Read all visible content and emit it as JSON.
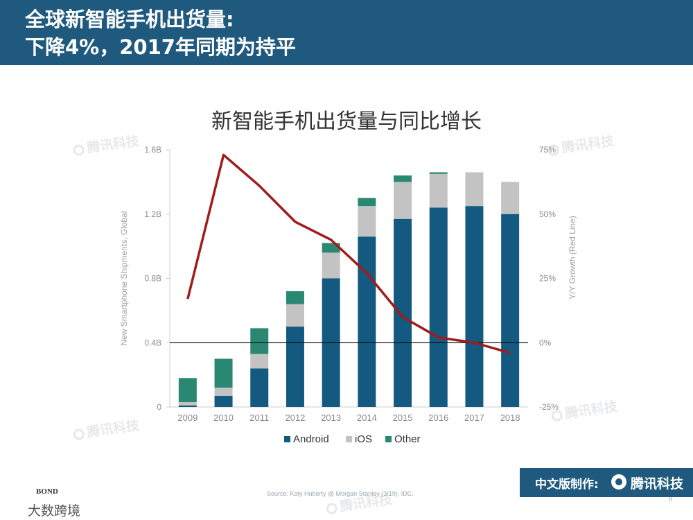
{
  "header": {
    "title_line1": "全球新智能手机出货量:",
    "title_line2": "下降4%，2017年同期为持平",
    "background": "#1f5a7e"
  },
  "chart_data": {
    "type": "bar",
    "stacked": true,
    "title": "新智能手机出货量与同比增长",
    "categories": [
      "2009",
      "2010",
      "2011",
      "2012",
      "2013",
      "2014",
      "2015",
      "2016",
      "2017",
      "2018"
    ],
    "ylabel": "New Smartphone Shipments, Global",
    "y2label": "Y/Y Growth (Red Line)",
    "ylim": [
      0,
      1.6
    ],
    "yticks": [
      "0",
      "0.4B",
      "0.8B",
      "1.2B",
      "1.6B"
    ],
    "y2lim": [
      -25,
      75
    ],
    "y2ticks": [
      "-25%",
      "0%",
      "25%",
      "50%",
      "75%"
    ],
    "series": [
      {
        "name": "Android",
        "color": "#14597f",
        "values": [
          0.01,
          0.07,
          0.24,
          0.5,
          0.8,
          1.06,
          1.17,
          1.24,
          1.25,
          1.2
        ]
      },
      {
        "name": "iOS",
        "color": "#c3c3c3",
        "values": [
          0.02,
          0.05,
          0.09,
          0.14,
          0.16,
          0.19,
          0.23,
          0.21,
          0.21,
          0.2
        ]
      },
      {
        "name": "Other",
        "color": "#2a8872",
        "values": [
          0.15,
          0.18,
          0.16,
          0.08,
          0.06,
          0.05,
          0.04,
          0.01,
          0.0,
          0.0
        ]
      }
    ],
    "line": {
      "name": "Y/Y Growth",
      "color": "#a01c1c",
      "values": [
        17,
        73,
        61,
        47,
        40,
        27,
        10,
        2,
        0,
        -4
      ]
    },
    "legend": [
      "Android",
      "iOS",
      "Other"
    ],
    "legend_position": "bottom",
    "grid": false,
    "zero_line": true
  },
  "source": "Source: Katy Huberty @ Morgan Stanley (3/19), IDC.",
  "page_number": "8",
  "footer": {
    "label": "中文版制作:",
    "brand": "腾讯科技"
  },
  "bond": {
    "logo": "BOND",
    "sub": "大数跨境"
  },
  "watermark": "腾讯科技"
}
